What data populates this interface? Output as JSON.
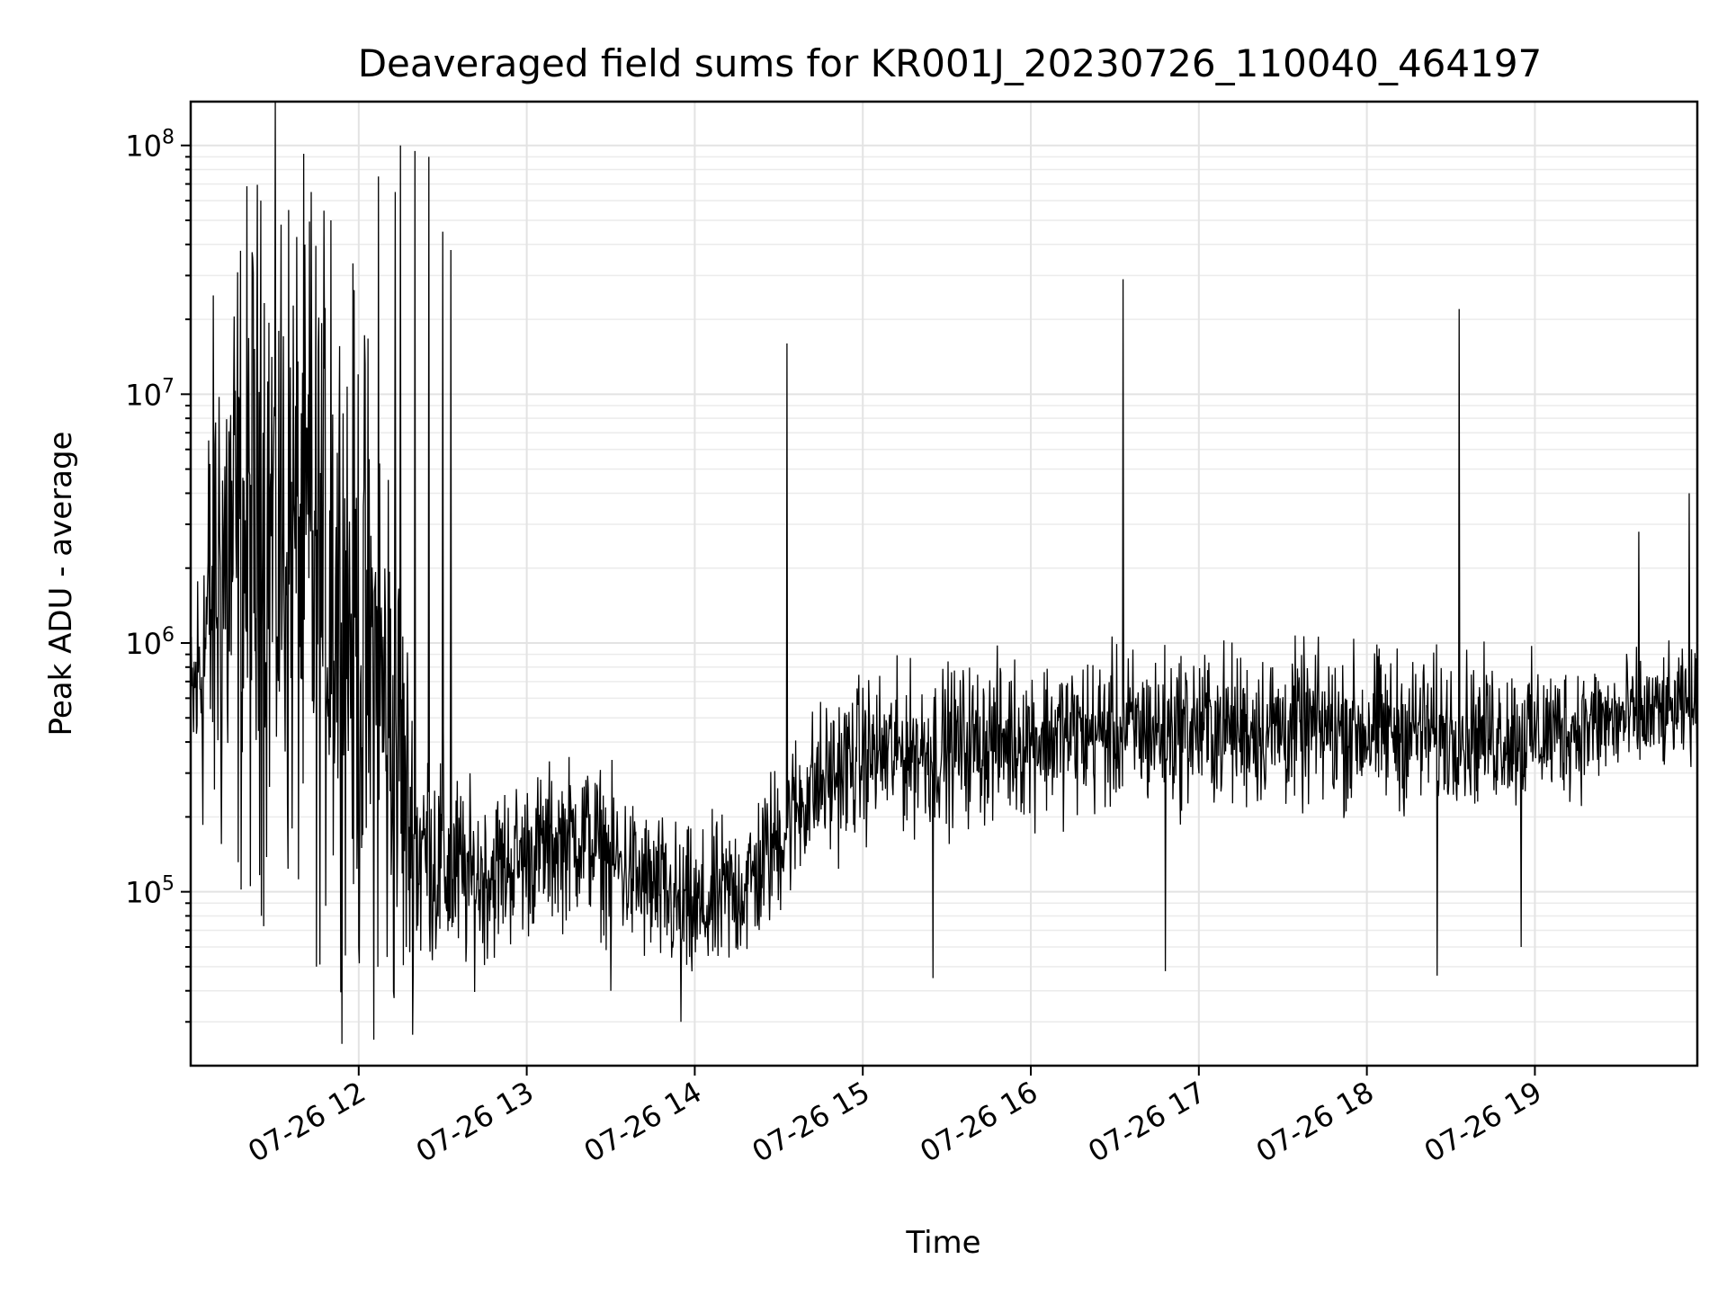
{
  "chart_data": {
    "type": "line",
    "title": "Deaveraged field sums for KR001J_20230726_110040_464197",
    "xlabel": "Time",
    "ylabel": "Peak ADU - average",
    "yscale": "log",
    "xlim": [
      "2023-07-26 11:00",
      "2023-07-26 19:58"
    ],
    "ylim": [
      20000,
      150000000
    ],
    "grid": true,
    "x_ticks": [
      {
        "label": "07-26 12",
        "value": "2023-07-26 12:00"
      },
      {
        "label": "07-26 13",
        "value": "2023-07-26 13:00"
      },
      {
        "label": "07-26 14",
        "value": "2023-07-26 14:00"
      },
      {
        "label": "07-26 15",
        "value": "2023-07-26 15:00"
      },
      {
        "label": "07-26 16",
        "value": "2023-07-26 16:00"
      },
      {
        "label": "07-26 17",
        "value": "2023-07-26 17:00"
      },
      {
        "label": "07-26 18",
        "value": "2023-07-26 18:00"
      },
      {
        "label": "07-26 19",
        "value": "2023-07-26 19:00"
      }
    ],
    "y_ticks": [
      {
        "base": "10",
        "exp": "5",
        "value": 100000
      },
      {
        "base": "10",
        "exp": "6",
        "value": 1000000
      },
      {
        "base": "10",
        "exp": "7",
        "value": 10000000
      },
      {
        "base": "10",
        "exp": "8",
        "value": 100000000
      }
    ],
    "series_color": "#000000",
    "trend": [
      {
        "x": "2023-07-26 11:00",
        "y": 500000,
        "spread": 0.25
      },
      {
        "x": "2023-07-26 11:10",
        "y": 2000000,
        "spread": 0.9
      },
      {
        "x": "2023-07-26 11:30",
        "y": 3000000,
        "spread": 1.0
      },
      {
        "x": "2023-07-26 11:55",
        "y": 1500000,
        "spread": 0.9
      },
      {
        "x": "2023-07-26 12:10",
        "y": 500000,
        "spread": 0.9
      },
      {
        "x": "2023-07-26 12:20",
        "y": 150000,
        "spread": 0.4
      },
      {
        "x": "2023-07-26 12:40",
        "y": 110000,
        "spread": 0.25
      },
      {
        "x": "2023-07-26 13:00",
        "y": 140000,
        "spread": 0.22
      },
      {
        "x": "2023-07-26 13:20",
        "y": 170000,
        "spread": 0.22
      },
      {
        "x": "2023-07-26 13:40",
        "y": 110000,
        "spread": 0.22
      },
      {
        "x": "2023-07-26 14:00",
        "y": 80000,
        "spread": 0.22
      },
      {
        "x": "2023-07-26 14:20",
        "y": 110000,
        "spread": 0.22
      },
      {
        "x": "2023-07-26 14:40",
        "y": 250000,
        "spread": 0.22
      },
      {
        "x": "2023-07-26 15:00",
        "y": 350000,
        "spread": 0.22
      },
      {
        "x": "2023-07-26 16:00",
        "y": 420000,
        "spread": 0.22
      },
      {
        "x": "2023-07-26 17:00",
        "y": 460000,
        "spread": 0.22
      },
      {
        "x": "2023-07-26 18:00",
        "y": 450000,
        "spread": 0.22
      },
      {
        "x": "2023-07-26 19:00",
        "y": 430000,
        "spread": 0.2
      },
      {
        "x": "2023-07-26 19:58",
        "y": 550000,
        "spread": 0.15
      }
    ],
    "spikes": [
      {
        "x": "2023-07-26 11:25",
        "y": 60000000
      },
      {
        "x": "2023-07-26 11:35",
        "y": 55000000
      },
      {
        "x": "2023-07-26 11:43",
        "y": 65000000
      },
      {
        "x": "2023-07-26 11:50",
        "y": 50000000
      },
      {
        "x": "2023-07-26 12:07",
        "y": 75000000
      },
      {
        "x": "2023-07-26 12:13",
        "y": 65000000
      },
      {
        "x": "2023-07-26 12:15",
        "y": 100000000
      },
      {
        "x": "2023-07-26 12:20",
        "y": 95000000
      },
      {
        "x": "2023-07-26 12:25",
        "y": 90000000
      },
      {
        "x": "2023-07-26 12:30",
        "y": 45000000
      },
      {
        "x": "2023-07-26 12:33",
        "y": 38000000
      },
      {
        "x": "2023-07-26 14:33",
        "y": 16000000
      },
      {
        "x": "2023-07-26 16:33",
        "y": 29000000
      },
      {
        "x": "2023-07-26 18:33",
        "y": 22000000
      },
      {
        "x": "2023-07-26 19:37",
        "y": 2800000
      },
      {
        "x": "2023-07-26 19:55",
        "y": 4000000
      }
    ],
    "dips": [
      {
        "x": "2023-07-26 11:45",
        "y": 50000
      },
      {
        "x": "2023-07-26 12:00",
        "y": 60000
      },
      {
        "x": "2023-07-26 13:30",
        "y": 40000
      },
      {
        "x": "2023-07-26 13:55",
        "y": 30000
      },
      {
        "x": "2023-07-26 15:25",
        "y": 45000
      },
      {
        "x": "2023-07-26 16:48",
        "y": 48000
      },
      {
        "x": "2023-07-26 18:25",
        "y": 46000
      },
      {
        "x": "2023-07-26 18:55",
        "y": 60000
      }
    ]
  }
}
